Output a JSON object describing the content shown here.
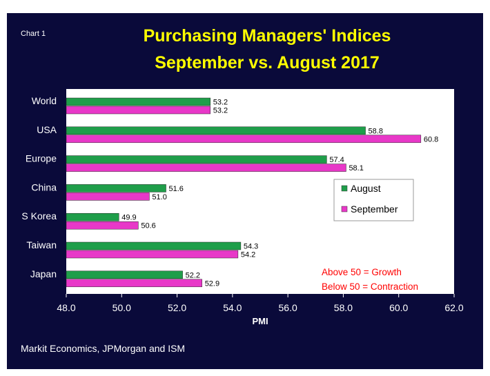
{
  "chart_label": "Chart 1",
  "source": "Markit Economics, JPMorgan and ISM",
  "colors": {
    "background": "#0a0a3a",
    "title": "#ffff00",
    "august": "#1f9e4a",
    "september": "#e838c8",
    "note": "#ff0000"
  },
  "chart_data": {
    "type": "bar",
    "orientation": "horizontal",
    "title": "Purchasing Managers' Indices",
    "subtitle": "September vs. August 2017",
    "xlabel": "PMI",
    "ylabel": "",
    "xlim": [
      48.0,
      62.0
    ],
    "xticks": [
      "48.0",
      "50.0",
      "52.0",
      "54.0",
      "56.0",
      "58.0",
      "60.0",
      "62.0"
    ],
    "categories": [
      "World",
      "USA",
      "Europe",
      "China",
      "S Korea",
      "Taiwan",
      "Japan"
    ],
    "series": [
      {
        "name": "August",
        "values": [
          53.2,
          58.8,
          57.4,
          51.6,
          49.9,
          54.3,
          52.2
        ],
        "labels": [
          "53.2",
          "58.8",
          "57.4",
          "51.6",
          "49.9",
          "54.3",
          "52.2"
        ]
      },
      {
        "name": "September",
        "values": [
          53.2,
          60.8,
          58.1,
          51.0,
          50.6,
          54.2,
          52.9
        ],
        "labels": [
          "53.2",
          "60.8",
          "58.1",
          "51.0",
          "50.6",
          "54.2",
          "52.9"
        ]
      }
    ],
    "legend_position": "middle-right",
    "annotations": [
      "Above 50 = Growth",
      "Below 50 = Contraction"
    ]
  }
}
